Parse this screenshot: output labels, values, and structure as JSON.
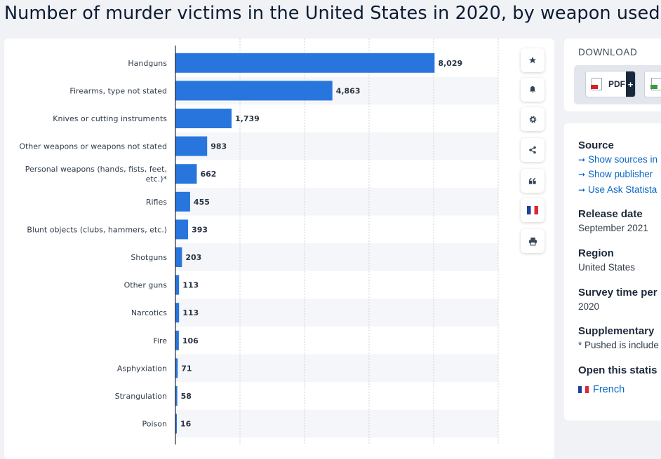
{
  "title": "Number of murder victims in the United States in 2020, by weapon used",
  "chart_data": {
    "type": "bar",
    "orientation": "horizontal",
    "categories": [
      "Handguns",
      "Firearms, type not stated",
      "Knives or cutting instruments",
      "Other weapons or weapons not stated",
      "Personal weapons (hands, fists, feet, etc.)*",
      "Rifles",
      "Blunt objects (clubs, hammers, etc.)",
      "Shotguns",
      "Other guns",
      "Narcotics",
      "Fire",
      "Asphyxiation",
      "Strangulation",
      "Poison"
    ],
    "values": [
      8029,
      4863,
      1739,
      983,
      662,
      455,
      393,
      203,
      113,
      113,
      106,
      71,
      58,
      16
    ],
    "value_labels": [
      "8,029",
      "4,863",
      "1,739",
      "983",
      "662",
      "455",
      "393",
      "203",
      "113",
      "113",
      "106",
      "71",
      "58",
      "16"
    ],
    "xlim": [
      0,
      10000
    ],
    "grid": true,
    "bar_color": "#2876dd"
  },
  "toolbar": {
    "icons": [
      "star-icon",
      "bell-icon",
      "gear-icon",
      "share-icon",
      "quote-icon",
      "flag-icon",
      "print-icon"
    ]
  },
  "download": {
    "title": "DOWNLOAD",
    "pdf_label": "PDF",
    "plus": "+"
  },
  "info": {
    "source_heading": "Source",
    "source_links": [
      "Show sources in",
      "Show publisher",
      "Use Ask Statista"
    ],
    "release_heading": "Release date",
    "release_value": "September 2021",
    "region_heading": "Region",
    "region_value": "United States",
    "survey_heading": "Survey time per",
    "survey_value": "2020",
    "supp_heading": "Supplementary",
    "supp_value": "* Pushed is include",
    "open_heading": "Open this statis",
    "open_lang": "French"
  }
}
